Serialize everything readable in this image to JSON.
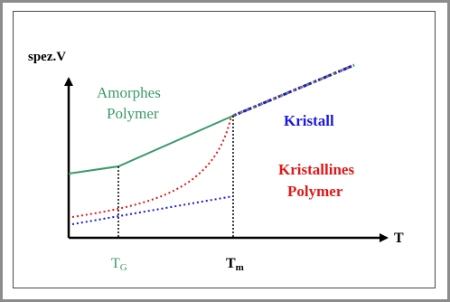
{
  "axes": {
    "y_label": "spez.V",
    "x_label": "T"
  },
  "labels": {
    "amorphous_line1": "Amorphes",
    "amorphous_line2": "Polymer",
    "crystal": "Kristall",
    "crystalline_line1": "Kristallines",
    "crystalline_line2": "Polymer",
    "tg_main": "T",
    "tg_sub": "G",
    "tm_main": "T",
    "tm_sub": "m"
  },
  "colors": {
    "amorphous": "#3a9a6a",
    "crystal": "#1a1adc",
    "crystalline": "#e01818",
    "axis": "#000000",
    "frame_outer": "#8c8c8c",
    "frame_inner": "#4a4a4a"
  }
}
